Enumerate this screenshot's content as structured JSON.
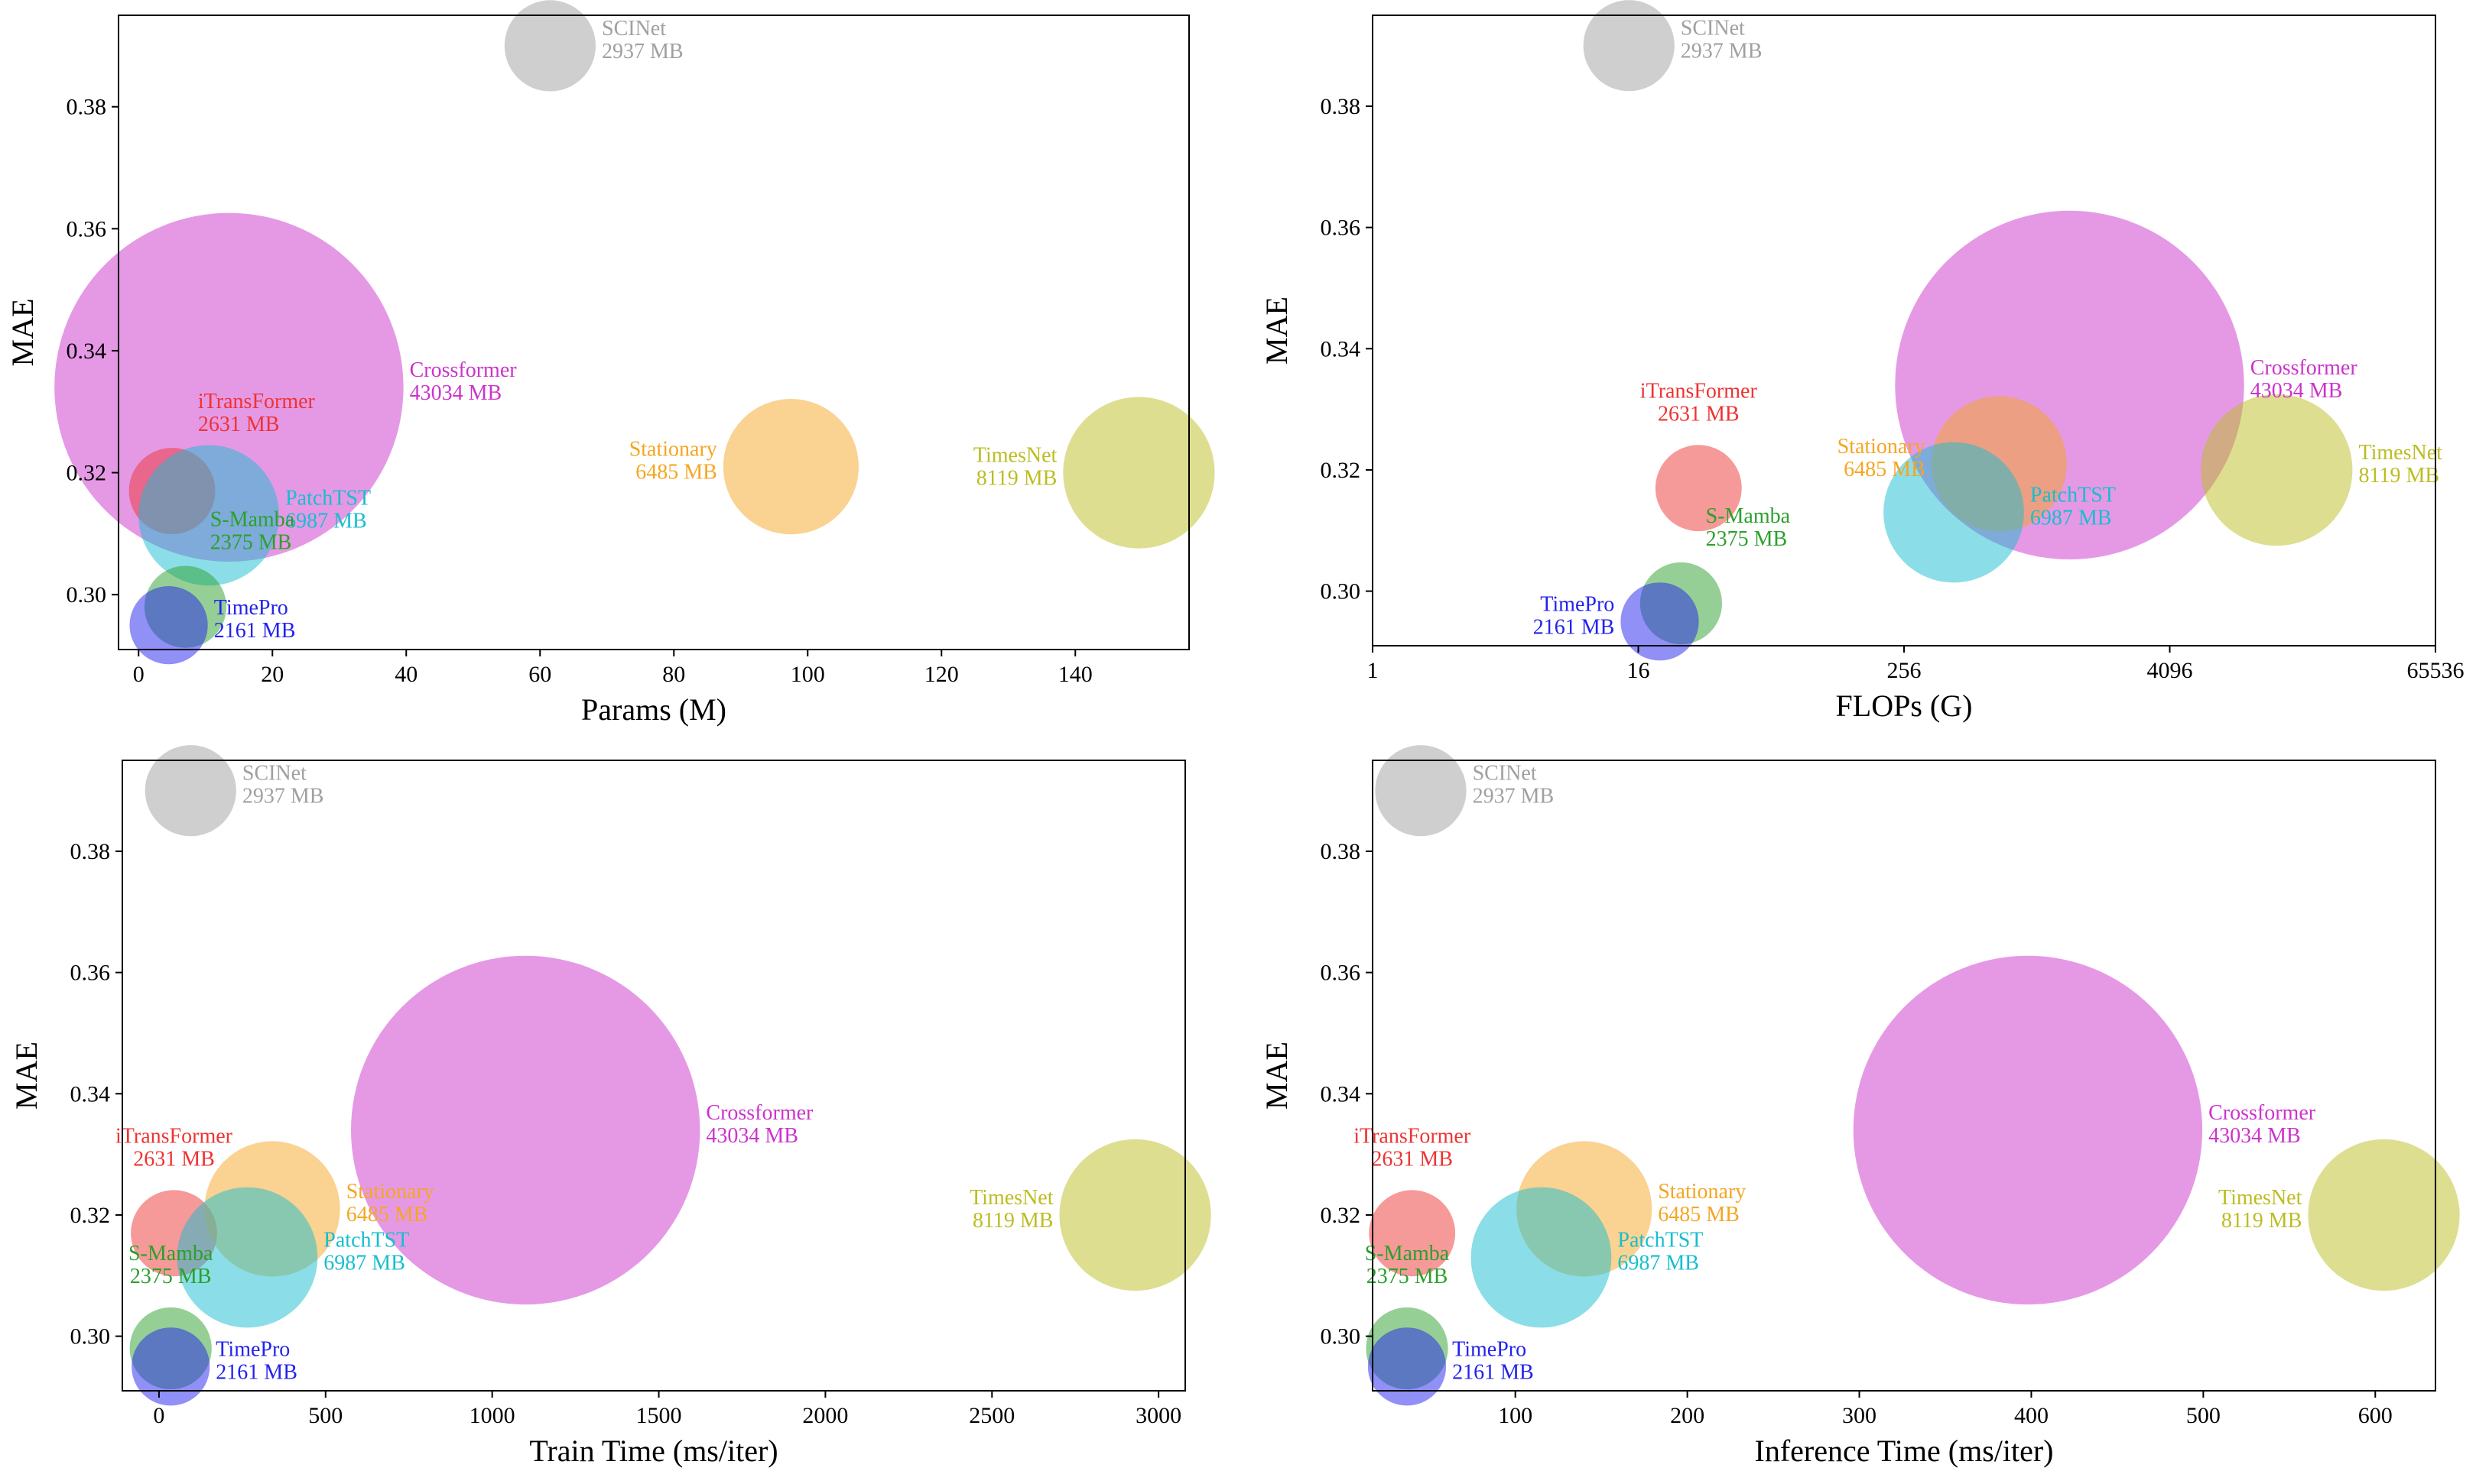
{
  "chart_data": [
    {
      "type": "scatter",
      "xlabel": "Params (M)",
      "ylabel": "MAE",
      "xscale": "linear",
      "xlim": [
        -3,
        157
      ],
      "ylim": [
        0.291,
        0.395
      ],
      "xticks": [
        0,
        20,
        40,
        60,
        80,
        100,
        120,
        140
      ],
      "xtick_labels": [
        "0",
        "20",
        "40",
        "60",
        "80",
        "100",
        "120",
        "140"
      ],
      "yticks": [
        0.3,
        0.32,
        0.34,
        0.36,
        0.38
      ],
      "ytick_labels": [
        "0.30",
        "0.32",
        "0.34",
        "0.36",
        "0.38"
      ],
      "points": [
        {
          "name": "SCINet",
          "memory": "2937 MB",
          "memory_mb": 2937,
          "x": 61.5,
          "y": 0.39,
          "color": "#a0a0a0",
          "label_pos": "right"
        },
        {
          "name": "Crossformer",
          "memory": "43034 MB",
          "memory_mb": 43034,
          "x": 13.5,
          "y": 0.334,
          "color": "#cc33cc",
          "label_pos": "right"
        },
        {
          "name": "iTransFormer",
          "memory": "2631 MB",
          "memory_mb": 2631,
          "x": 5.0,
          "y": 0.317,
          "color": "#ee3333",
          "label_pos": "above-right"
        },
        {
          "name": "Stationary",
          "memory": "6485 MB",
          "memory_mb": 6485,
          "x": 97.5,
          "y": 0.321,
          "color": "#f5a623",
          "label_pos": "left"
        },
        {
          "name": "TimesNet",
          "memory": "8119 MB",
          "memory_mb": 8119,
          "x": 149.5,
          "y": 0.32,
          "color": "#bcbd22",
          "label_pos": "left"
        },
        {
          "name": "PatchTST",
          "memory": "6987 MB",
          "memory_mb": 6987,
          "x": 10.5,
          "y": 0.313,
          "color": "#17becf",
          "label_pos": "right"
        },
        {
          "name": "S-Mamba",
          "memory": "2375 MB",
          "memory_mb": 2375,
          "x": 7.0,
          "y": 0.298,
          "color": "#2ca02c",
          "label_pos": "above-right"
        },
        {
          "name": "TimePro",
          "memory": "2161 MB",
          "memory_mb": 2161,
          "x": 4.5,
          "y": 0.295,
          "color": "#2222ee",
          "label_pos": "right"
        }
      ]
    },
    {
      "type": "scatter",
      "xlabel": "FLOPs (G)",
      "ylabel": "MAE",
      "xscale": "log2",
      "xlim": [
        1,
        65536
      ],
      "ylim": [
        0.291,
        0.395
      ],
      "xticks": [
        1,
        16,
        256,
        4096,
        65536
      ],
      "xtick_labels": [
        "1",
        "16",
        "256",
        "4096",
        "65536"
      ],
      "yticks": [
        0.3,
        0.32,
        0.34,
        0.36,
        0.38
      ],
      "ytick_labels": [
        "0.30",
        "0.32",
        "0.34",
        "0.36",
        "0.38"
      ],
      "points": [
        {
          "name": "SCINet",
          "memory": "2937 MB",
          "memory_mb": 2937,
          "x": 14.5,
          "y": 0.39,
          "color": "#a0a0a0",
          "label_pos": "right"
        },
        {
          "name": "Crossformer",
          "memory": "43034 MB",
          "memory_mb": 43034,
          "x": 1440,
          "y": 0.334,
          "color": "#cc33cc",
          "label_pos": "right"
        },
        {
          "name": "iTransFormer",
          "memory": "2631 MB",
          "memory_mb": 2631,
          "x": 30,
          "y": 0.317,
          "color": "#ee3333",
          "label_pos": "above"
        },
        {
          "name": "Stationary",
          "memory": "6485 MB",
          "memory_mb": 6485,
          "x": 690,
          "y": 0.321,
          "color": "#f5a623",
          "label_pos": "left"
        },
        {
          "name": "TimesNet",
          "memory": "8119 MB",
          "memory_mb": 8119,
          "x": 12500,
          "y": 0.32,
          "color": "#bcbd22",
          "label_pos": "right"
        },
        {
          "name": "PatchTST",
          "memory": "6987 MB",
          "memory_mb": 6987,
          "x": 430,
          "y": 0.313,
          "color": "#17becf",
          "label_pos": "right"
        },
        {
          "name": "S-Mamba",
          "memory": "2375 MB",
          "memory_mb": 2375,
          "x": 25,
          "y": 0.298,
          "color": "#2ca02c",
          "label_pos": "above-right"
        },
        {
          "name": "TimePro",
          "memory": "2161 MB",
          "memory_mb": 2161,
          "x": 20,
          "y": 0.295,
          "color": "#2222ee",
          "label_pos": "left"
        }
      ]
    },
    {
      "type": "scatter",
      "xlabel": "Train Time (ms/iter)",
      "ylabel": "MAE",
      "xscale": "linear",
      "xlim": [
        -110,
        3080
      ],
      "ylim": [
        0.291,
        0.395
      ],
      "xticks": [
        0,
        500,
        1000,
        1500,
        2000,
        2500,
        3000
      ],
      "xtick_labels": [
        "0",
        "500",
        "1000",
        "1500",
        "2000",
        "2500",
        "3000"
      ],
      "yticks": [
        0.3,
        0.32,
        0.34,
        0.36,
        0.38
      ],
      "ytick_labels": [
        "0.30",
        "0.32",
        "0.34",
        "0.36",
        "0.38"
      ],
      "points": [
        {
          "name": "SCINet",
          "memory": "2937 MB",
          "memory_mb": 2937,
          "x": 95,
          "y": 0.39,
          "color": "#a0a0a0",
          "label_pos": "right"
        },
        {
          "name": "Crossformer",
          "memory": "43034 MB",
          "memory_mb": 43034,
          "x": 1100,
          "y": 0.334,
          "color": "#cc33cc",
          "label_pos": "right"
        },
        {
          "name": "iTransFormer",
          "memory": "2631 MB",
          "memory_mb": 2631,
          "x": 45,
          "y": 0.317,
          "color": "#ee3333",
          "label_pos": "above"
        },
        {
          "name": "Stationary",
          "memory": "6485 MB",
          "memory_mb": 6485,
          "x": 340,
          "y": 0.321,
          "color": "#f5a623",
          "label_pos": "right"
        },
        {
          "name": "TimesNet",
          "memory": "8119 MB",
          "memory_mb": 8119,
          "x": 2930,
          "y": 0.32,
          "color": "#bcbd22",
          "label_pos": "left"
        },
        {
          "name": "PatchTST",
          "memory": "6987 MB",
          "memory_mb": 6987,
          "x": 265,
          "y": 0.313,
          "color": "#17becf",
          "label_pos": "right"
        },
        {
          "name": "S-Mamba",
          "memory": "2375 MB",
          "memory_mb": 2375,
          "x": 35,
          "y": 0.298,
          "color": "#2ca02c",
          "label_pos": "above"
        },
        {
          "name": "TimePro",
          "memory": "2161 MB",
          "memory_mb": 2161,
          "x": 35,
          "y": 0.295,
          "color": "#2222ee",
          "label_pos": "right"
        }
      ]
    },
    {
      "type": "scatter",
      "xlabel": "Inference Time (ms/iter)",
      "ylabel": "MAE",
      "xscale": "linear",
      "xlim": [
        17,
        635
      ],
      "ylim": [
        0.291,
        0.395
      ],
      "xticks": [
        100,
        200,
        300,
        400,
        500,
        600
      ],
      "xtick_labels": [
        "100",
        "200",
        "300",
        "400",
        "500",
        "600"
      ],
      "yticks": [
        0.3,
        0.32,
        0.34,
        0.36,
        0.38
      ],
      "ytick_labels": [
        "0.30",
        "0.32",
        "0.34",
        "0.36",
        "0.38"
      ],
      "points": [
        {
          "name": "SCINet",
          "memory": "2937 MB",
          "memory_mb": 2937,
          "x": 45,
          "y": 0.39,
          "color": "#a0a0a0",
          "label_pos": "right"
        },
        {
          "name": "Crossformer",
          "memory": "43034 MB",
          "memory_mb": 43034,
          "x": 398,
          "y": 0.334,
          "color": "#cc33cc",
          "label_pos": "right"
        },
        {
          "name": "iTransFormer",
          "memory": "2631 MB",
          "memory_mb": 2631,
          "x": 40,
          "y": 0.317,
          "color": "#ee3333",
          "label_pos": "above"
        },
        {
          "name": "Stationary",
          "memory": "6485 MB",
          "memory_mb": 6485,
          "x": 140,
          "y": 0.321,
          "color": "#f5a623",
          "label_pos": "right"
        },
        {
          "name": "TimesNet",
          "memory": "8119 MB",
          "memory_mb": 8119,
          "x": 605,
          "y": 0.32,
          "color": "#bcbd22",
          "label_pos": "left"
        },
        {
          "name": "PatchTST",
          "memory": "6987 MB",
          "memory_mb": 6987,
          "x": 115,
          "y": 0.313,
          "color": "#17becf",
          "label_pos": "right"
        },
        {
          "name": "S-Mamba",
          "memory": "2375 MB",
          "memory_mb": 2375,
          "x": 37,
          "y": 0.298,
          "color": "#2ca02c",
          "label_pos": "above"
        },
        {
          "name": "TimePro",
          "memory": "2161 MB",
          "memory_mb": 2161,
          "x": 37,
          "y": 0.295,
          "color": "#2222ee",
          "label_pos": "right"
        }
      ]
    }
  ]
}
